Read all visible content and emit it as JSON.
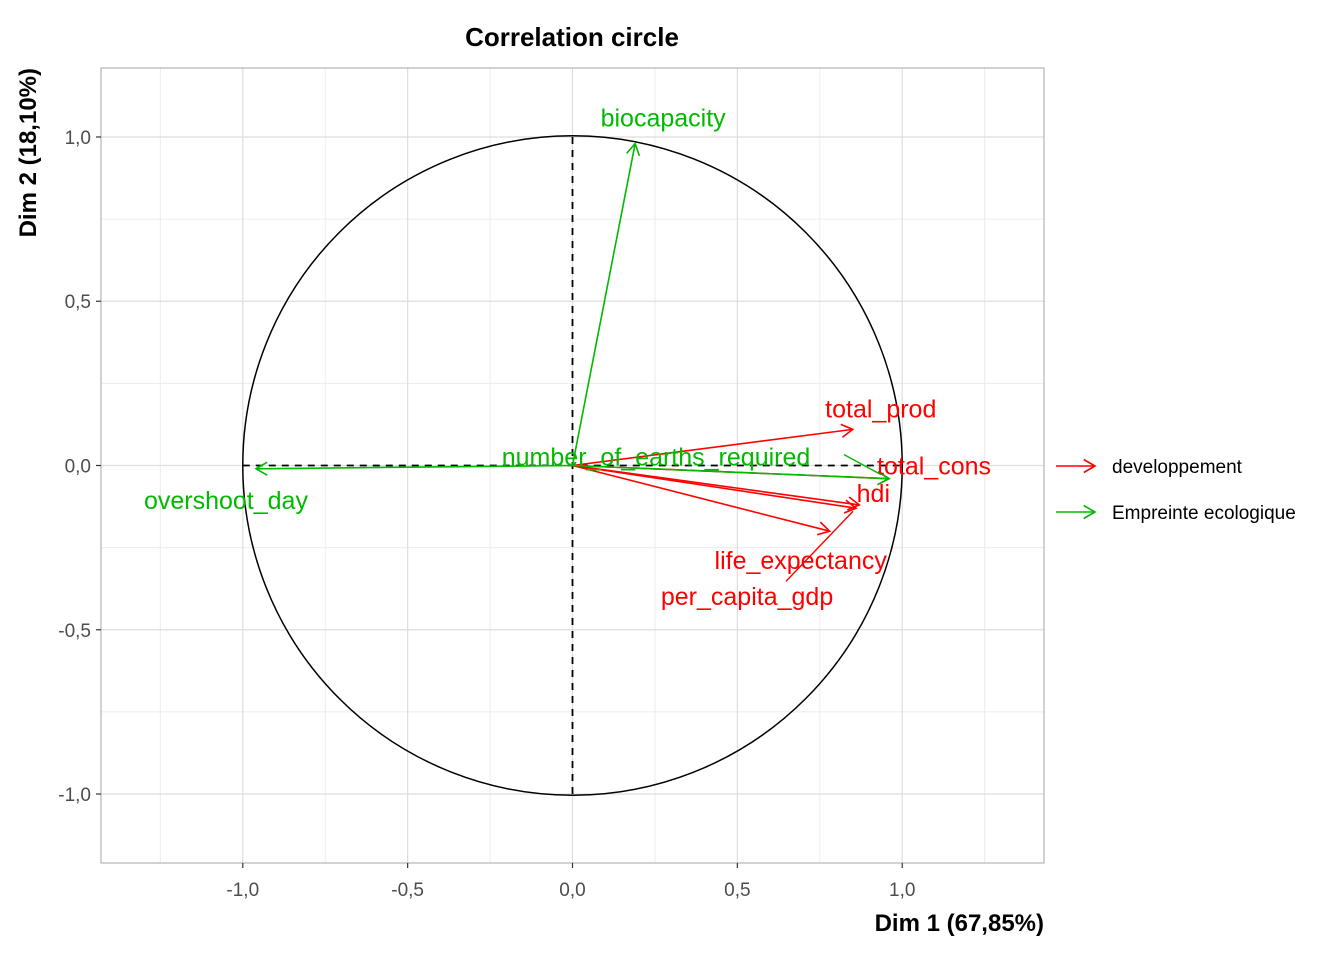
{
  "chart_data": {
    "type": "scatter",
    "title": "Correlation circle",
    "xlabel": "Dim 1 (67,85%)",
    "ylabel": "Dim 2 (18,10%)",
    "xlim": [
      -1.43,
      1.43
    ],
    "ylim": [
      -1.21,
      1.21
    ],
    "x_ticks": [
      -1.0,
      -0.5,
      0.0,
      0.5,
      1.0
    ],
    "x_tick_labels": [
      "-1,0",
      "-0,5",
      "0,0",
      "0,5",
      "1,0"
    ],
    "y_ticks": [
      -1.0,
      -0.5,
      0.0,
      0.5,
      1.0
    ],
    "y_tick_labels": [
      "-1,0",
      "-0,5",
      "0,0",
      "0,5",
      "1,0"
    ],
    "grid": true,
    "unit_circle": true,
    "legend_position": "right",
    "series": [
      {
        "name": "developpement",
        "color": "#ff0000",
        "variables": [
          {
            "label": "total_prod",
            "x": 0.85,
            "y": 0.11
          },
          {
            "label": "total_cons",
            "x": 0.96,
            "y": -0.04
          },
          {
            "label": "hdi",
            "x": 0.87,
            "y": -0.12
          },
          {
            "label": "life_expectancy",
            "x": 0.78,
            "y": -0.2
          },
          {
            "label": "per_capita_gdp",
            "x": 0.86,
            "y": -0.13
          }
        ]
      },
      {
        "name": "Empreinte ecologique",
        "color": "#00ba00",
        "variables": [
          {
            "label": "biocapacity",
            "x": 0.19,
            "y": 0.98
          },
          {
            "label": "number_of_earths_required",
            "x": 0.96,
            "y": -0.04
          },
          {
            "label": "overshoot_day",
            "x": -0.96,
            "y": -0.01
          }
        ]
      }
    ]
  }
}
